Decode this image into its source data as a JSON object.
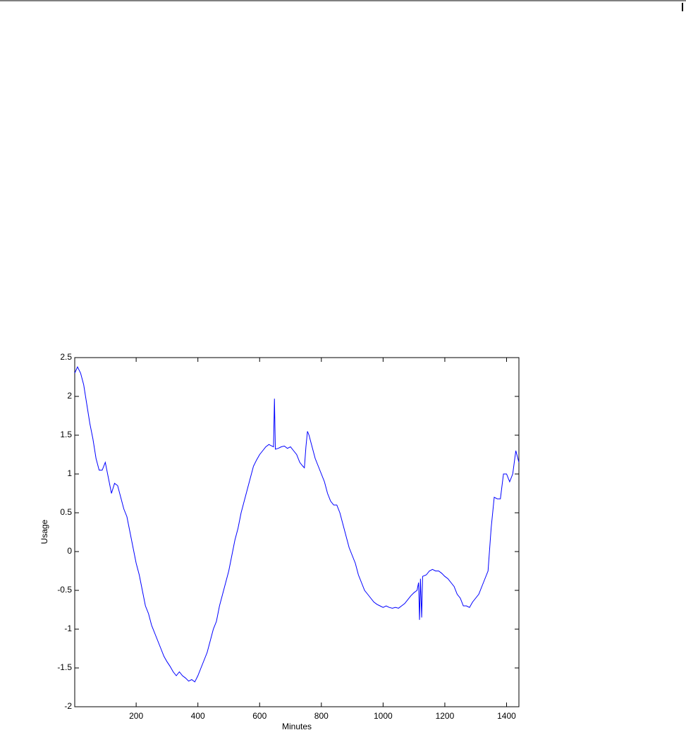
{
  "chart_data": {
    "type": "line",
    "xlabel": "Minutes",
    "ylabel": "Usage",
    "x": [
      1,
      10,
      20,
      30,
      40,
      50,
      60,
      70,
      80,
      90,
      100,
      110,
      120,
      130,
      140,
      150,
      160,
      170,
      180,
      190,
      200,
      210,
      220,
      230,
      240,
      250,
      260,
      270,
      280,
      290,
      300,
      310,
      320,
      330,
      340,
      350,
      360,
      370,
      380,
      390,
      400,
      410,
      420,
      430,
      440,
      450,
      460,
      470,
      480,
      490,
      500,
      510,
      520,
      530,
      540,
      550,
      560,
      570,
      580,
      590,
      600,
      610,
      620,
      630,
      640,
      645,
      648,
      651,
      660,
      670,
      680,
      690,
      700,
      710,
      720,
      730,
      740,
      745,
      750,
      755,
      760,
      770,
      780,
      790,
      800,
      810,
      820,
      830,
      840,
      850,
      860,
      870,
      880,
      890,
      900,
      910,
      920,
      930,
      940,
      950,
      960,
      970,
      980,
      990,
      1000,
      1010,
      1020,
      1030,
      1040,
      1050,
      1060,
      1070,
      1080,
      1090,
      1100,
      1110,
      1115,
      1118,
      1121,
      1125,
      1128,
      1140,
      1150,
      1160,
      1170,
      1180,
      1190,
      1200,
      1210,
      1220,
      1230,
      1240,
      1250,
      1260,
      1270,
      1280,
      1290,
      1300,
      1310,
      1320,
      1330,
      1340,
      1350,
      1360,
      1370,
      1380,
      1390,
      1400,
      1410,
      1420,
      1430,
      1440
    ],
    "series": [
      {
        "color": "#0000ff",
        "values": [
          2.3,
          2.38,
          2.3,
          2.15,
          1.9,
          1.65,
          1.45,
          1.2,
          1.05,
          1.05,
          1.15,
          0.95,
          0.75,
          0.88,
          0.85,
          0.7,
          0.55,
          0.45,
          0.25,
          0.05,
          -0.15,
          -0.3,
          -0.5,
          -0.7,
          -0.8,
          -0.95,
          -1.05,
          -1.15,
          -1.25,
          -1.35,
          -1.42,
          -1.48,
          -1.55,
          -1.6,
          -1.55,
          -1.6,
          -1.63,
          -1.67,
          -1.65,
          -1.68,
          -1.6,
          -1.5,
          -1.4,
          -1.3,
          -1.15,
          -1.0,
          -0.9,
          -0.7,
          -0.55,
          -0.4,
          -0.25,
          -0.05,
          0.15,
          0.3,
          0.5,
          0.65,
          0.8,
          0.95,
          1.1,
          1.18,
          1.25,
          1.3,
          1.35,
          1.38,
          1.36,
          1.35,
          1.97,
          1.32,
          1.33,
          1.35,
          1.36,
          1.33,
          1.35,
          1.3,
          1.25,
          1.15,
          1.1,
          1.08,
          1.35,
          1.55,
          1.5,
          1.35,
          1.2,
          1.1,
          1.0,
          0.9,
          0.75,
          0.65,
          0.6,
          0.6,
          0.5,
          0.35,
          0.2,
          0.05,
          -0.05,
          -0.15,
          -0.3,
          -0.4,
          -0.5,
          -0.55,
          -0.6,
          -0.65,
          -0.68,
          -0.7,
          -0.72,
          -0.7,
          -0.72,
          -0.73,
          -0.72,
          -0.73,
          -0.7,
          -0.67,
          -0.62,
          -0.57,
          -0.53,
          -0.5,
          -0.4,
          -0.88,
          -0.35,
          -0.85,
          -0.32,
          -0.3,
          -0.25,
          -0.23,
          -0.25,
          -0.25,
          -0.28,
          -0.32,
          -0.35,
          -0.4,
          -0.45,
          -0.55,
          -0.6,
          -0.7,
          -0.7,
          -0.72,
          -0.65,
          -0.6,
          -0.55,
          -0.45,
          -0.35,
          -0.25,
          0.3,
          0.7,
          0.68,
          0.68,
          1.0,
          1.0,
          0.9,
          1.0,
          1.3,
          1.15
        ]
      }
    ],
    "xlim": [
      1,
      1440
    ],
    "xticks": [
      200,
      400,
      600,
      800,
      1000,
      1200,
      1400
    ],
    "ylim": [
      -2,
      2.5
    ],
    "yticks": [
      -2,
      -1.5,
      -1,
      -0.5,
      0,
      0.5,
      1,
      1.5,
      2,
      2.5
    ],
    "grid": false
  }
}
